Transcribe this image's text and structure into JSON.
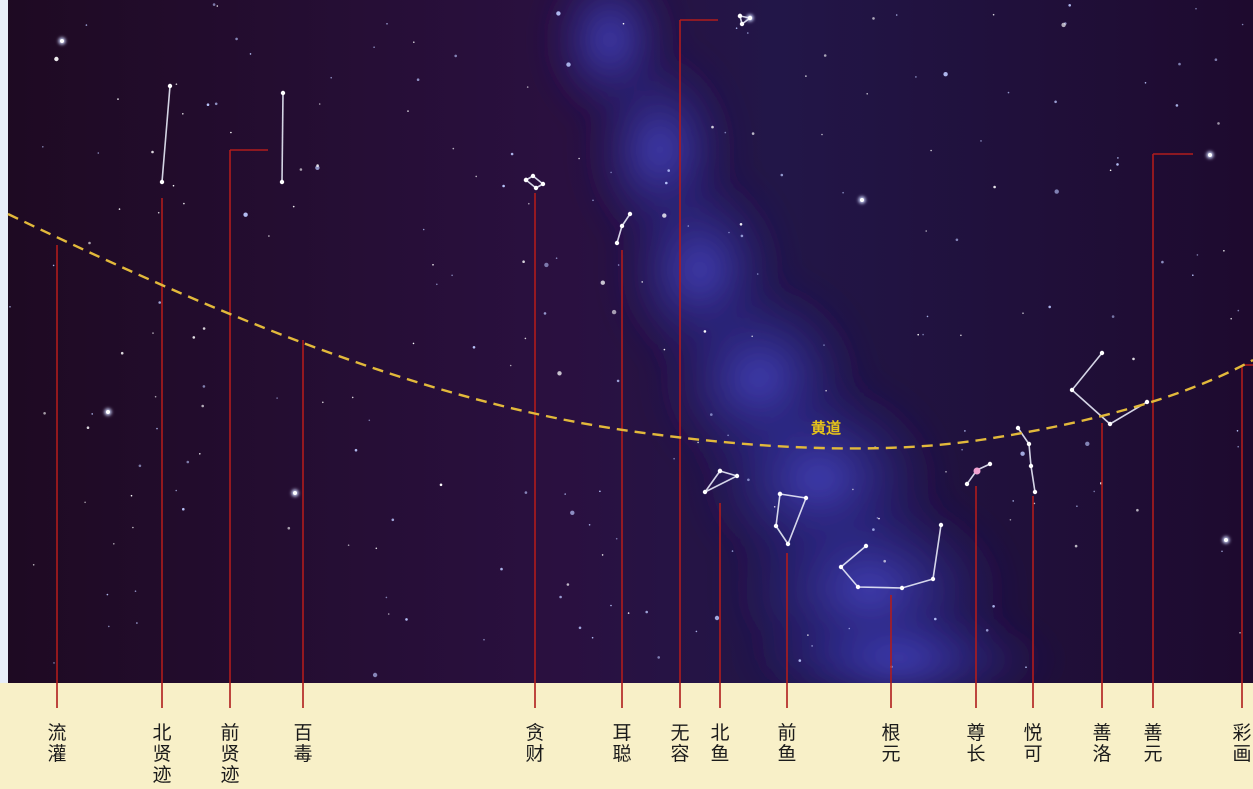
{
  "ecliptic": {
    "label": "黄道",
    "color": "#e2b93b"
  },
  "colors": {
    "sky_top": "#1a0a2a",
    "sky_mid": "#2c0f3a",
    "milky_way": "#3a3ab0",
    "label_band": "#f8f0c8",
    "leader_line": "#b01c1c",
    "constellation_line": "#e8eaf8",
    "label_text": "#1b1b1b"
  },
  "labels": [
    {
      "id": "liuguan",
      "text": "流灌"
    },
    {
      "id": "beixianji",
      "text": "北贤迹"
    },
    {
      "id": "qianxianji",
      "text": "前贤迹"
    },
    {
      "id": "baidu",
      "text": "百毒"
    },
    {
      "id": "tancai",
      "text": "贪财"
    },
    {
      "id": "ercong",
      "text": "耳聪"
    },
    {
      "id": "wurong",
      "text": "无容"
    },
    {
      "id": "beiyu",
      "text": "北鱼"
    },
    {
      "id": "qianyu",
      "text": "前鱼"
    },
    {
      "id": "genyuan",
      "text": "根元"
    },
    {
      "id": "zunzhang",
      "text": "尊长"
    },
    {
      "id": "yueke",
      "text": "悦可"
    },
    {
      "id": "shanluo",
      "text": "善洛"
    },
    {
      "id": "shanyuan",
      "text": "善元"
    },
    {
      "id": "caihua",
      "text": "彩画"
    }
  ]
}
